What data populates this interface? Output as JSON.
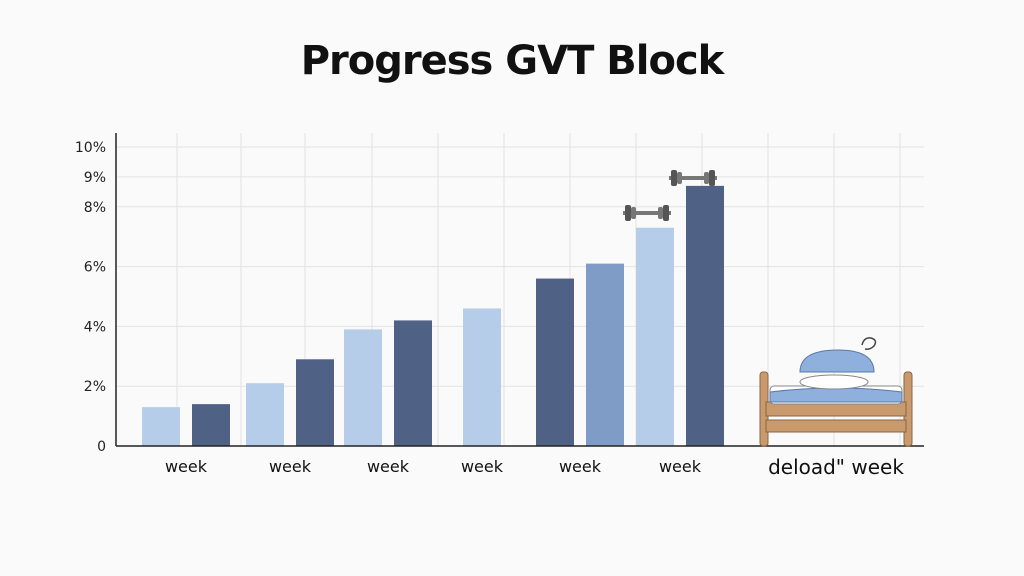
{
  "chart_data": {
    "type": "bar",
    "title": "Progress GVT Block",
    "y_tick_labels": [
      "0",
      "2%",
      "4%",
      "6%",
      "8%",
      "9%",
      "10%"
    ],
    "y_tick_values": [
      0,
      2,
      4,
      6,
      8,
      9,
      10
    ],
    "ylim": [
      0,
      10
    ],
    "grid": true,
    "categories": [
      "week",
      "week",
      "week",
      "week",
      "week",
      "week",
      "deload\" week"
    ],
    "bars": [
      {
        "group": 0,
        "value": 1.3,
        "shade": "light"
      },
      {
        "group": 0,
        "value": 1.4,
        "shade": "dark"
      },
      {
        "group": 1,
        "value": 2.1,
        "shade": "light"
      },
      {
        "group": 1,
        "value": 2.9,
        "shade": "dark"
      },
      {
        "group": 2,
        "value": 3.9,
        "shade": "light"
      },
      {
        "group": 2,
        "value": 4.2,
        "shade": "dark"
      },
      {
        "group": 3,
        "value": 4.6,
        "shade": "light"
      },
      {
        "group": 4,
        "value": 5.6,
        "shade": "dark"
      },
      {
        "group": 4,
        "value": 6.1,
        "shade": "medium"
      },
      {
        "group": 5,
        "value": 7.3,
        "shade": "light"
      },
      {
        "group": 5,
        "value": 8.7,
        "shade": "dark"
      }
    ],
    "colors": {
      "light": "#b6cdea",
      "medium": "#7f9cc6",
      "dark": "#4f6185",
      "grid": "#e3e3e3",
      "axis": "#222222"
    },
    "icons": [
      "dumbbell-icon",
      "dumbbell-icon",
      "bed-icon"
    ]
  }
}
